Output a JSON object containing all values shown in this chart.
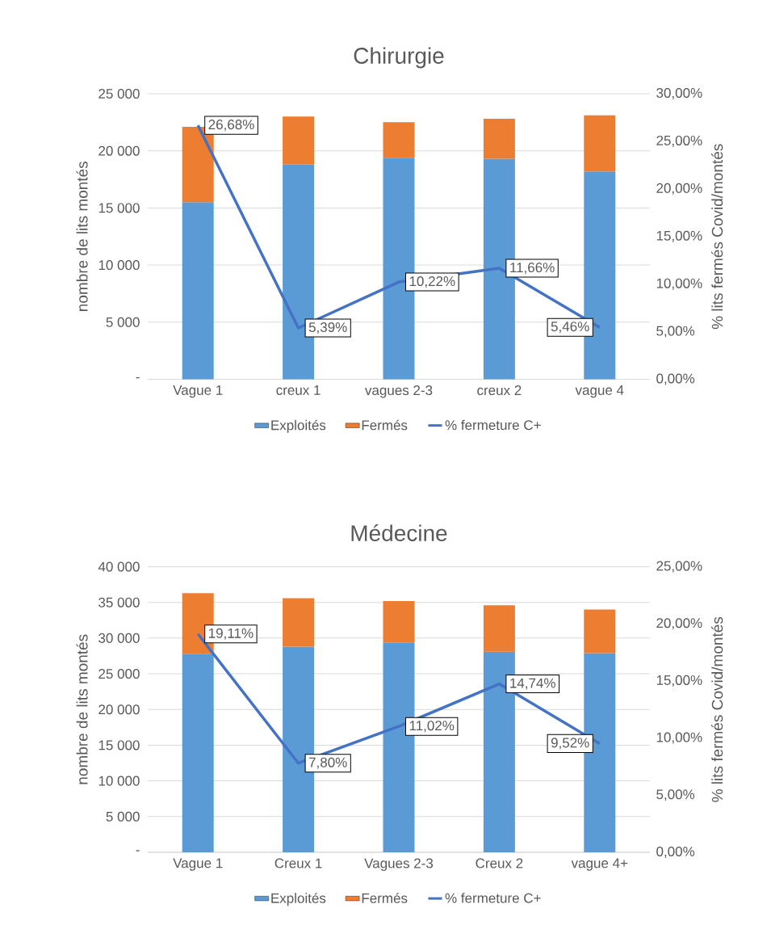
{
  "chart_data": [
    {
      "type": "bar",
      "title": "Chirurgie",
      "stacked": true,
      "categories": [
        "Vague 1",
        "creux 1",
        "vagues 2-3",
        "creux 2",
        "vague 4"
      ],
      "ylabel": "nombre de lits montés",
      "y2label": "% lits fermés Covid/montés",
      "ylim": [
        0,
        25000
      ],
      "yticks": [
        {
          "value": 0,
          "label": "-"
        },
        {
          "value": 5000,
          "label": "5 000"
        },
        {
          "value": 10000,
          "label": "10 000"
        },
        {
          "value": 15000,
          "label": "15 000"
        },
        {
          "value": 20000,
          "label": "20 000"
        },
        {
          "value": 25000,
          "label": "25 000"
        }
      ],
      "y2lim": [
        0,
        30
      ],
      "y2ticks": [
        {
          "value": 0,
          "label": "0,00%"
        },
        {
          "value": 5,
          "label": "5,00%"
        },
        {
          "value": 10,
          "label": "10,00%"
        },
        {
          "value": 15,
          "label": "15,00%"
        },
        {
          "value": 20,
          "label": "20,00%"
        },
        {
          "value": 25,
          "label": "25,00%"
        },
        {
          "value": 30,
          "label": "30,00%"
        }
      ],
      "grid": "y",
      "legend": "bottom",
      "series": [
        {
          "name": "Exploités",
          "color": "#5b9bd5",
          "values": [
            15500,
            18800,
            19400,
            19300,
            18200
          ]
        },
        {
          "name": "Fermés",
          "color": "#ed7d31",
          "values": [
            6600,
            4200,
            3100,
            3500,
            4900
          ]
        },
        {
          "name": "% fermeture C+",
          "type": "line",
          "axis": "y2",
          "color": "#4472c4",
          "values": [
            26.68,
            5.39,
            10.22,
            11.66,
            5.46
          ],
          "value_labels": [
            "26,68%",
            "5,39%",
            "10,22%",
            "11,66%",
            "5,46%"
          ]
        }
      ]
    },
    {
      "type": "bar",
      "title": "Médecine",
      "stacked": true,
      "categories": [
        "Vague 1",
        "Creux 1",
        "Vagues 2-3",
        "Creux 2",
        "vague 4+"
      ],
      "ylabel": "nombre de lits montés",
      "y2label": "% lits fermés Covid/montés",
      "ylim": [
        0,
        40000
      ],
      "yticks": [
        {
          "value": 0,
          "label": "-"
        },
        {
          "value": 5000,
          "label": "5 000"
        },
        {
          "value": 10000,
          "label": "10 000"
        },
        {
          "value": 15000,
          "label": "15 000"
        },
        {
          "value": 20000,
          "label": "20 000"
        },
        {
          "value": 25000,
          "label": "25 000"
        },
        {
          "value": 30000,
          "label": "30 000"
        },
        {
          "value": 35000,
          "label": "35 000"
        },
        {
          "value": 40000,
          "label": "40 000"
        }
      ],
      "y2lim": [
        0,
        25
      ],
      "y2ticks": [
        {
          "value": 0,
          "label": "0,00%"
        },
        {
          "value": 5,
          "label": "5,00%"
        },
        {
          "value": 10,
          "label": "10,00%"
        },
        {
          "value": 15,
          "label": "15,00%"
        },
        {
          "value": 20,
          "label": "20,00%"
        },
        {
          "value": 25,
          "label": "25,00%"
        }
      ],
      "grid": "y",
      "legend": "bottom",
      "series": [
        {
          "name": "Exploités",
          "color": "#5b9bd5",
          "values": [
            27800,
            28800,
            29400,
            28100,
            27900
          ]
        },
        {
          "name": "Fermés",
          "color": "#ed7d31",
          "values": [
            8500,
            6800,
            5800,
            6500,
            6100
          ]
        },
        {
          "name": "% fermeture C+",
          "type": "line",
          "axis": "y2",
          "color": "#4472c4",
          "values": [
            19.11,
            7.8,
            11.02,
            14.74,
            9.52
          ],
          "value_labels": [
            "19,11%",
            "7,80%",
            "11,02%",
            "14,74%",
            "9,52%"
          ]
        }
      ]
    }
  ]
}
